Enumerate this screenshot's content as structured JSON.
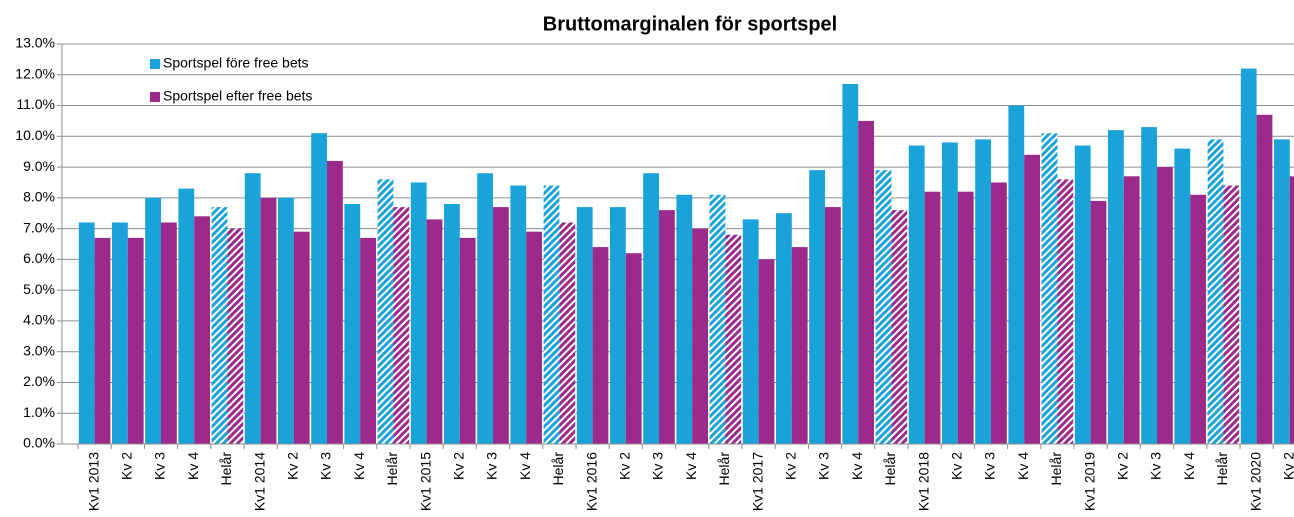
{
  "chart_data": {
    "type": "bar",
    "title": "Bruttomarginalen för sportspel",
    "categories": [
      "Kv1 2013",
      "Kv 2",
      "Kv 3",
      "Kv 4",
      "Helår",
      "Kv1 2014",
      "Kv 2",
      "Kv 3",
      "Kv 4",
      "Helår",
      "Kv1 2015",
      "Kv 2",
      "Kv 3",
      "Kv 4",
      "Helår",
      "Kv1 2016",
      "Kv 2",
      "Kv 3",
      "Kv 4",
      "Helår",
      "Kv1 2017",
      "Kv 2",
      "Kv 3",
      "Kv 4",
      "Helår",
      "Kv1 2018",
      "Kv 2",
      "Kv 3",
      "Kv 4",
      "Helår",
      "Kv1 2019",
      "Kv 2",
      "Kv 3",
      "Kv 4",
      "Helår",
      "Kv1 2020",
      "Kv 2"
    ],
    "series": [
      {
        "name": "Sportspel före free bets",
        "color": "#1aa3d9",
        "values": [
          7.2,
          7.2,
          8.0,
          8.3,
          7.7,
          8.8,
          8.0,
          10.1,
          7.8,
          8.6,
          8.5,
          7.8,
          8.8,
          8.4,
          8.4,
          7.7,
          7.7,
          8.8,
          8.1,
          8.1,
          7.3,
          7.5,
          8.9,
          11.7,
          8.9,
          9.7,
          9.8,
          9.9,
          11.0,
          10.1,
          9.7,
          10.2,
          10.3,
          9.6,
          9.9,
          12.2,
          9.9
        ]
      },
      {
        "name": "Sportspel efter free bets",
        "color": "#9b2a8a",
        "values": [
          6.7,
          6.7,
          7.2,
          7.4,
          7.0,
          8.0,
          6.9,
          9.2,
          6.7,
          7.7,
          7.3,
          6.7,
          7.7,
          6.9,
          7.2,
          6.4,
          6.2,
          7.6,
          7.0,
          6.8,
          6.0,
          6.4,
          7.7,
          10.5,
          7.6,
          8.2,
          8.2,
          8.5,
          9.4,
          8.6,
          7.9,
          8.7,
          9.0,
          8.1,
          8.4,
          10.7,
          8.7
        ]
      }
    ],
    "hatched_indices": [
      4,
      9,
      14,
      19,
      24,
      29,
      34
    ],
    "ylim": [
      0,
      13
    ],
    "yticks": [
      {
        "value": 0,
        "label": "0.0%"
      },
      {
        "value": 1,
        "label": "1.0%"
      },
      {
        "value": 2,
        "label": "2.0%"
      },
      {
        "value": 3,
        "label": "3.0%"
      },
      {
        "value": 4,
        "label": "4.0%"
      },
      {
        "value": 5,
        "label": "5.0%"
      },
      {
        "value": 6,
        "label": "6.0%"
      },
      {
        "value": 7,
        "label": "7.0%"
      },
      {
        "value": 8,
        "label": "8.0%"
      },
      {
        "value": 9,
        "label": "9.0%"
      },
      {
        "value": 10,
        "label": "10.0%"
      },
      {
        "value": 11,
        "label": "11.0%"
      },
      {
        "value": 12,
        "label": "12.0%"
      },
      {
        "value": 13,
        "label": "13.0%"
      }
    ],
    "grid": true,
    "legend": "top-left"
  }
}
